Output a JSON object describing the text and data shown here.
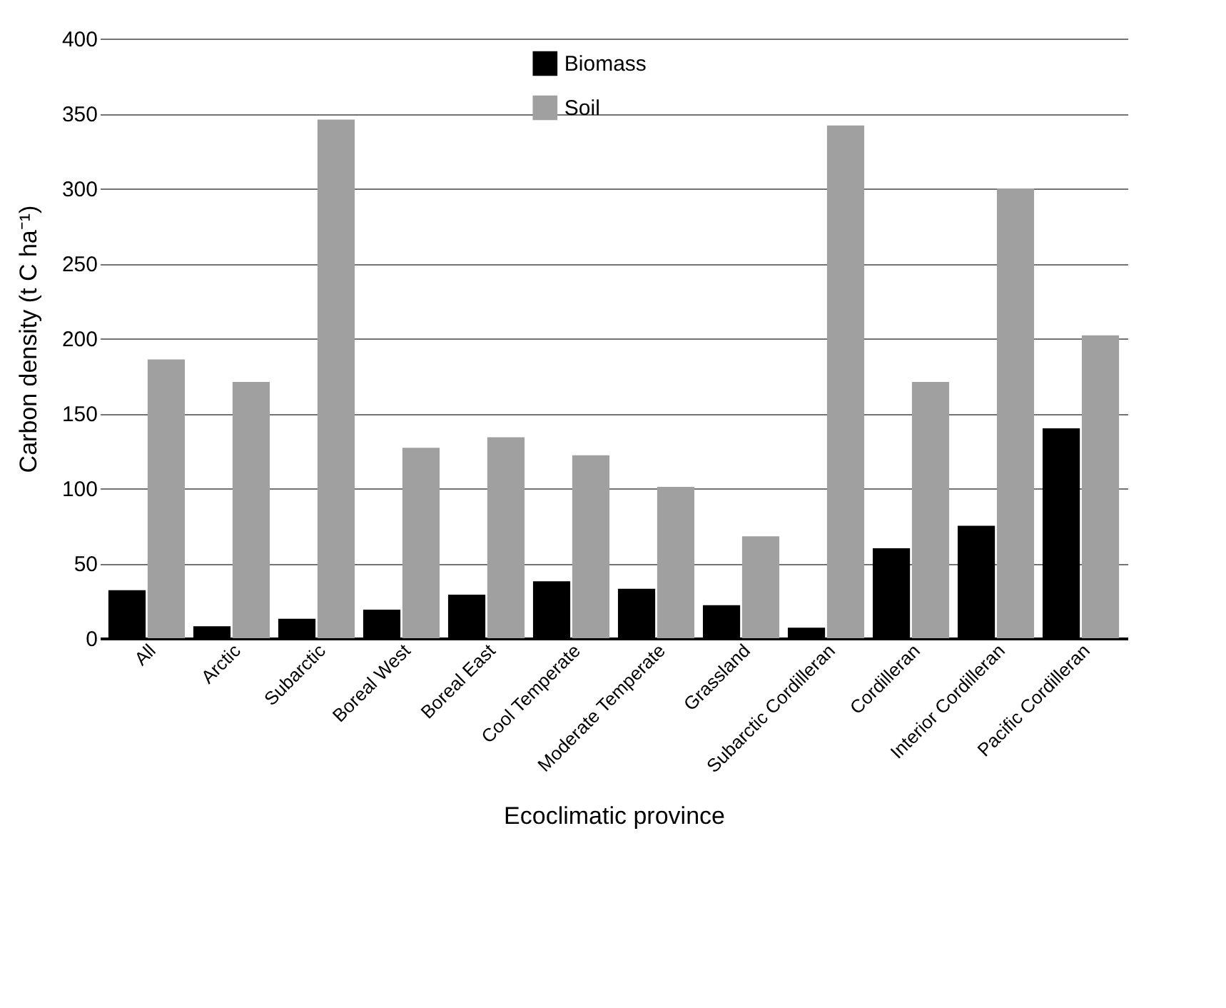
{
  "chart_data": {
    "type": "bar",
    "xlabel": "Ecoclimatic province",
    "ylabel": "Carbon density (t C ha⁻¹)",
    "categories": [
      "All",
      "Arctic",
      "Subarctic",
      "Boreal West",
      "Boreal East",
      "Cool Temperate",
      "Moderate Temperate",
      "Grassland",
      "Subarctic Cordilleran",
      "Cordilleran",
      "Interior Cordilleran",
      "Pacific Cordilleran"
    ],
    "series": [
      {
        "name": "Biomass",
        "color": "#000000",
        "values": [
          32,
          8,
          13,
          19,
          29,
          38,
          33,
          22,
          7,
          60,
          75,
          140
        ]
      },
      {
        "name": "Soil",
        "color": "#a0a0a0",
        "values": [
          186,
          171,
          346,
          127,
          134,
          122,
          101,
          68,
          342,
          171,
          300,
          202
        ]
      }
    ],
    "ylim": [
      0,
      400
    ],
    "yticks": [
      0,
      50,
      100,
      150,
      200,
      250,
      300,
      350,
      400
    ],
    "grid": "y",
    "legend": "top"
  }
}
